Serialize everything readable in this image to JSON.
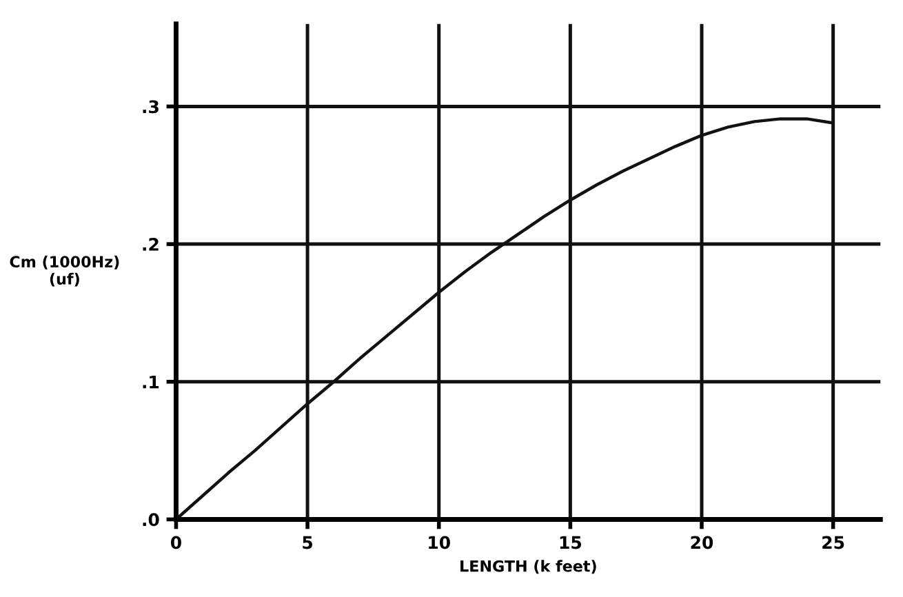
{
  "chart_data": {
    "type": "line",
    "xlabel": "LENGTH (k feet)",
    "ylabel": "Cm (1000Hz)\n(uf)",
    "x": [
      0,
      1,
      2,
      3,
      4,
      5,
      6,
      7,
      8,
      9,
      10,
      11,
      12,
      13,
      14,
      15,
      16,
      17,
      18,
      19,
      20,
      21,
      22,
      23,
      24,
      25
    ],
    "series": [
      {
        "color": "#111111",
        "values": [
          0,
          0.017,
          0.034,
          0.05,
          0.067,
          0.084,
          0.1,
          0.117,
          0.133,
          0.149,
          0.165,
          0.18,
          0.194,
          0.207,
          0.22,
          0.232,
          0.243,
          0.253,
          0.262,
          0.271,
          0.279,
          0.285,
          0.289,
          0.291,
          0.291,
          0.288
        ]
      }
    ],
    "xlim": [
      0,
      26.8
    ],
    "ylim": [
      0,
      0.36
    ],
    "xticks": [
      0,
      5,
      10,
      15,
      20,
      25
    ],
    "yticks": [
      {
        "value": 0,
        "label": ".0"
      },
      {
        "value": 0.1,
        "label": ".1"
      },
      {
        "value": 0.2,
        "label": ".2"
      },
      {
        "value": 0.3,
        "label": ".3"
      }
    ],
    "grid": true,
    "line_style": "solid",
    "marker": "none"
  }
}
